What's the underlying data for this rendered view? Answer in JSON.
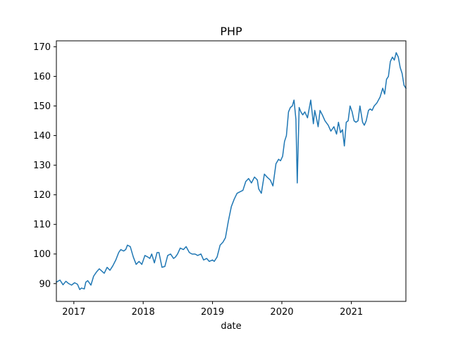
{
  "chart_data": {
    "type": "line",
    "title": "PHP",
    "xlabel": "date",
    "ylabel": "",
    "x_range": [
      "2016-10-01",
      "2021-10-15"
    ],
    "ylim": [
      84,
      172
    ],
    "x_ticks": [
      {
        "label": "2017",
        "date": "2017-01-01"
      },
      {
        "label": "2018",
        "date": "2018-01-01"
      },
      {
        "label": "2019",
        "date": "2019-01-01"
      },
      {
        "label": "2020",
        "date": "2020-01-01"
      },
      {
        "label": "2021",
        "date": "2021-01-01"
      }
    ],
    "y_ticks": [
      90,
      100,
      110,
      120,
      130,
      140,
      150,
      160,
      170
    ],
    "grid": false,
    "legend": "none",
    "line_color": "#1f77b4",
    "series": [
      {
        "x": [
          "2016-10-01",
          "2016-10-20",
          "2016-11-05",
          "2016-11-20",
          "2016-12-05",
          "2016-12-20",
          "2017-01-05",
          "2017-01-20",
          "2017-02-01",
          "2017-02-10",
          "2017-02-25",
          "2017-03-05",
          "2017-03-15",
          "2017-04-01",
          "2017-04-15",
          "2017-05-01",
          "2017-05-15",
          "2017-06-01",
          "2017-06-10",
          "2017-06-25",
          "2017-07-10",
          "2017-07-25",
          "2017-08-10",
          "2017-08-25",
          "2017-09-05",
          "2017-09-20",
          "2017-10-01",
          "2017-10-10",
          "2017-10-25",
          "2017-11-10",
          "2017-11-25",
          "2017-12-10",
          "2017-12-25",
          "2018-01-10",
          "2018-01-25",
          "2018-02-05",
          "2018-02-15",
          "2018-03-01",
          "2018-03-15",
          "2018-03-25",
          "2018-04-10",
          "2018-04-25",
          "2018-05-10",
          "2018-05-25",
          "2018-06-10",
          "2018-06-20",
          "2018-07-01",
          "2018-07-15",
          "2018-08-01",
          "2018-08-15",
          "2018-09-01",
          "2018-09-15",
          "2018-10-01",
          "2018-10-15",
          "2018-11-01",
          "2018-11-15",
          "2018-12-01",
          "2018-12-15",
          "2019-01-01",
          "2019-01-10",
          "2019-01-25",
          "2019-02-10",
          "2019-02-25",
          "2019-03-10",
          "2019-03-25",
          "2019-04-10",
          "2019-04-25",
          "2019-05-10",
          "2019-05-25",
          "2019-06-10",
          "2019-06-25",
          "2019-07-10",
          "2019-07-25",
          "2019-08-10",
          "2019-08-25",
          "2019-09-01",
          "2019-09-15",
          "2019-10-01",
          "2019-10-15",
          "2019-11-01",
          "2019-11-15",
          "2019-12-01",
          "2019-12-15",
          "2019-12-25",
          "2020-01-05",
          "2020-01-15",
          "2020-01-25",
          "2020-02-05",
          "2020-02-15",
          "2020-02-25",
          "2020-03-05",
          "2020-03-15",
          "2020-03-22",
          "2020-04-01",
          "2020-04-10",
          "2020-04-20",
          "2020-05-01",
          "2020-05-15",
          "2020-06-01",
          "2020-06-15",
          "2020-06-22",
          "2020-07-01",
          "2020-07-10",
          "2020-07-20",
          "2020-08-01",
          "2020-08-15",
          "2020-09-01",
          "2020-09-15",
          "2020-10-01",
          "2020-10-15",
          "2020-10-25",
          "2020-11-05",
          "2020-11-15",
          "2020-11-25",
          "2020-12-05",
          "2020-12-15",
          "2020-12-25",
          "2021-01-05",
          "2021-01-15",
          "2021-01-25",
          "2021-02-05",
          "2021-02-15",
          "2021-03-01",
          "2021-03-10",
          "2021-03-20",
          "2021-04-01",
          "2021-04-10",
          "2021-04-20",
          "2021-05-01",
          "2021-05-15",
          "2021-06-01",
          "2021-06-15",
          "2021-06-25",
          "2021-07-05",
          "2021-07-15",
          "2021-07-25",
          "2021-08-05",
          "2021-08-15",
          "2021-08-25",
          "2021-09-05",
          "2021-09-15",
          "2021-09-25",
          "2021-10-05",
          "2021-10-15"
        ],
        "y": [
          90.5,
          91.2,
          89.6,
          90.8,
          90.0,
          89.5,
          90.3,
          89.8,
          88.0,
          88.5,
          88.2,
          90.5,
          91.0,
          89.5,
          92.5,
          94.0,
          95.0,
          94.0,
          93.5,
          95.5,
          94.5,
          96.0,
          98.0,
          100.5,
          101.5,
          101.0,
          101.5,
          103.0,
          102.5,
          99.0,
          96.5,
          97.5,
          96.5,
          99.5,
          99.0,
          98.5,
          100.0,
          97.0,
          100.5,
          100.5,
          95.5,
          95.8,
          99.5,
          100.0,
          98.5,
          99.0,
          100.0,
          102.0,
          101.5,
          102.5,
          100.5,
          100.0,
          100.0,
          99.5,
          100.0,
          98.0,
          98.5,
          97.5,
          98.0,
          97.5,
          99.0,
          103.0,
          104.0,
          105.5,
          111.0,
          116.0,
          118.5,
          120.5,
          121.0,
          121.5,
          124.5,
          125.5,
          124.0,
          126.0,
          125.0,
          122.0,
          120.5,
          127.0,
          126.0,
          125.0,
          123.0,
          130.5,
          132.0,
          131.5,
          133.0,
          138.0,
          140.0,
          148.0,
          149.5,
          150.0,
          152.0,
          145.5,
          124.0,
          149.5,
          148.0,
          147.0,
          148.0,
          146.0,
          152.0,
          144.0,
          148.5,
          146.0,
          143.0,
          148.5,
          147.0,
          145.0,
          143.5,
          141.5,
          143.0,
          140.5,
          144.5,
          141.0,
          142.0,
          136.5,
          144.5,
          145.0,
          150.0,
          148.0,
          145.0,
          144.5,
          145.0,
          150.0,
          144.5,
          143.5,
          145.0,
          148.5,
          149.0,
          148.5,
          150.0,
          151.0,
          153.0,
          156.0,
          154.0,
          159.0,
          160.0,
          165.0,
          166.5,
          165.5,
          168.0,
          166.5,
          163.0,
          161.0,
          157.0,
          156.0
        ]
      }
    ]
  }
}
